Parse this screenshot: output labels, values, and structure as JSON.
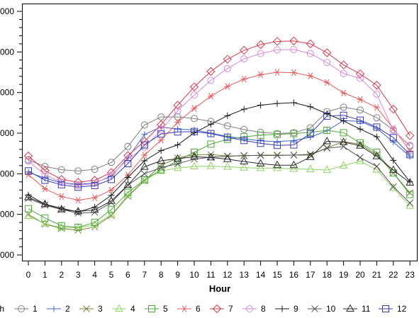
{
  "chart_data": {
    "type": "line",
    "xlabel": "Hour",
    "legend_title": "nth",
    "x": [
      0,
      1,
      2,
      3,
      4,
      5,
      6,
      7,
      8,
      9,
      10,
      11,
      12,
      13,
      14,
      15,
      16,
      17,
      18,
      19,
      20,
      21,
      22,
      23
    ],
    "ytick_labels": [
      "000",
      "000",
      "000",
      "000",
      "000",
      "000",
      "000"
    ],
    "ylim": [
      0,
      6
    ],
    "grid": false,
    "legend_position": "bottom",
    "series": [
      {
        "name": "1",
        "color": "#7f7f7f",
        "marker": "circle",
        "values": [
          2.34,
          2.18,
          2.1,
          2.07,
          2.11,
          2.28,
          2.67,
          3.2,
          3.4,
          3.4,
          3.36,
          3.29,
          3.18,
          3.09,
          3.02,
          2.99,
          3.01,
          3.13,
          3.53,
          3.64,
          3.57,
          3.38,
          3.08,
          2.68
        ]
      },
      {
        "name": "2",
        "color": "#3c64c8",
        "marker": "plus",
        "values": [
          2.04,
          1.89,
          1.78,
          1.74,
          1.77,
          1.94,
          2.39,
          2.97,
          3.15,
          3.1,
          3.08,
          3.0,
          2.92,
          2.86,
          2.81,
          2.79,
          2.82,
          2.9,
          3.06,
          3.31,
          3.29,
          3.12,
          2.78,
          2.43
        ]
      },
      {
        "name": "3",
        "color": "#7f7f3f",
        "marker": "x",
        "values": [
          1.0,
          0.76,
          0.65,
          0.61,
          0.69,
          0.97,
          1.44,
          1.83,
          2.21,
          2.39,
          2.47,
          2.47,
          2.44,
          2.44,
          2.46,
          2.46,
          2.46,
          2.46,
          2.64,
          2.79,
          2.73,
          2.47,
          2.02,
          1.53
        ]
      },
      {
        "name": "4",
        "color": "#8ed463",
        "marker": "triangle",
        "values": [
          0.96,
          0.77,
          0.67,
          0.67,
          0.74,
          0.99,
          1.47,
          1.84,
          2.07,
          2.14,
          2.18,
          2.19,
          2.17,
          2.15,
          2.14,
          2.14,
          2.12,
          2.11,
          2.09,
          2.2,
          2.31,
          2.1,
          1.65,
          1.21
        ]
      },
      {
        "name": "5",
        "color": "#4ea83a",
        "marker": "square",
        "values": [
          1.14,
          0.91,
          0.72,
          0.68,
          0.8,
          1.12,
          1.54,
          1.85,
          2.1,
          2.32,
          2.53,
          2.73,
          2.85,
          2.91,
          2.95,
          2.97,
          2.99,
          3.02,
          3.07,
          3.01,
          2.76,
          2.53,
          2.02,
          1.49
        ]
      },
      {
        "name": "6",
        "color": "#e35c5c",
        "marker": "star",
        "values": [
          1.98,
          1.63,
          1.44,
          1.35,
          1.41,
          1.6,
          1.97,
          2.46,
          2.83,
          3.27,
          3.61,
          3.91,
          4.15,
          4.33,
          4.44,
          4.5,
          4.49,
          4.41,
          4.25,
          3.99,
          3.83,
          3.63,
          3.12,
          2.56
        ]
      },
      {
        "name": "7",
        "color": "#d23c4f",
        "marker": "diamond",
        "values": [
          2.44,
          2.08,
          1.86,
          1.79,
          1.84,
          2.03,
          2.45,
          2.8,
          3.21,
          3.69,
          4.14,
          4.52,
          4.82,
          5.04,
          5.18,
          5.26,
          5.27,
          5.2,
          4.98,
          4.68,
          4.46,
          4.18,
          3.59,
          2.94
        ]
      },
      {
        "name": "8",
        "color": "#d78ad8",
        "marker": "circle",
        "values": [
          2.31,
          1.98,
          1.78,
          1.71,
          1.76,
          1.96,
          2.36,
          2.65,
          3.08,
          3.55,
          3.94,
          4.3,
          4.59,
          4.83,
          4.96,
          5.05,
          5.06,
          4.96,
          4.74,
          4.47,
          4.35,
          3.96,
          3.07,
          2.7
        ]
      },
      {
        "name": "9",
        "color": "#1a1a1a",
        "marker": "plus",
        "values": [
          1.48,
          1.25,
          1.15,
          1.06,
          1.18,
          1.47,
          1.91,
          2.32,
          2.57,
          2.71,
          3.01,
          3.22,
          3.43,
          3.59,
          3.69,
          3.73,
          3.75,
          3.65,
          3.48,
          3.3,
          3.1,
          2.91,
          2.33,
          1.8
        ]
      },
      {
        "name": "10",
        "color": "#555555",
        "marker": "x",
        "values": [
          1.39,
          1.23,
          1.12,
          1.03,
          1.05,
          1.29,
          1.72,
          2.0,
          2.15,
          2.25,
          2.36,
          2.41,
          2.43,
          2.45,
          2.45,
          2.45,
          2.46,
          2.48,
          2.63,
          2.67,
          2.4,
          2.18,
          1.68,
          1.28
        ]
      },
      {
        "name": "11",
        "color": "#2b2b2b",
        "marker": "triangle",
        "values": [
          1.42,
          1.25,
          1.12,
          1.07,
          1.11,
          1.33,
          1.72,
          2.17,
          2.32,
          2.37,
          2.42,
          2.4,
          2.36,
          2.3,
          2.25,
          2.21,
          2.21,
          2.41,
          2.8,
          2.78,
          2.69,
          2.43,
          2.09,
          1.78
        ]
      },
      {
        "name": "12",
        "color": "#3a3ab0",
        "marker": "square",
        "values": [
          2.07,
          1.84,
          1.73,
          1.67,
          1.71,
          1.86,
          2.25,
          2.71,
          2.98,
          3.03,
          3.04,
          2.99,
          2.9,
          2.82,
          2.75,
          2.7,
          2.71,
          2.99,
          3.42,
          3.44,
          3.32,
          3.15,
          2.89,
          2.47
        ]
      }
    ]
  }
}
